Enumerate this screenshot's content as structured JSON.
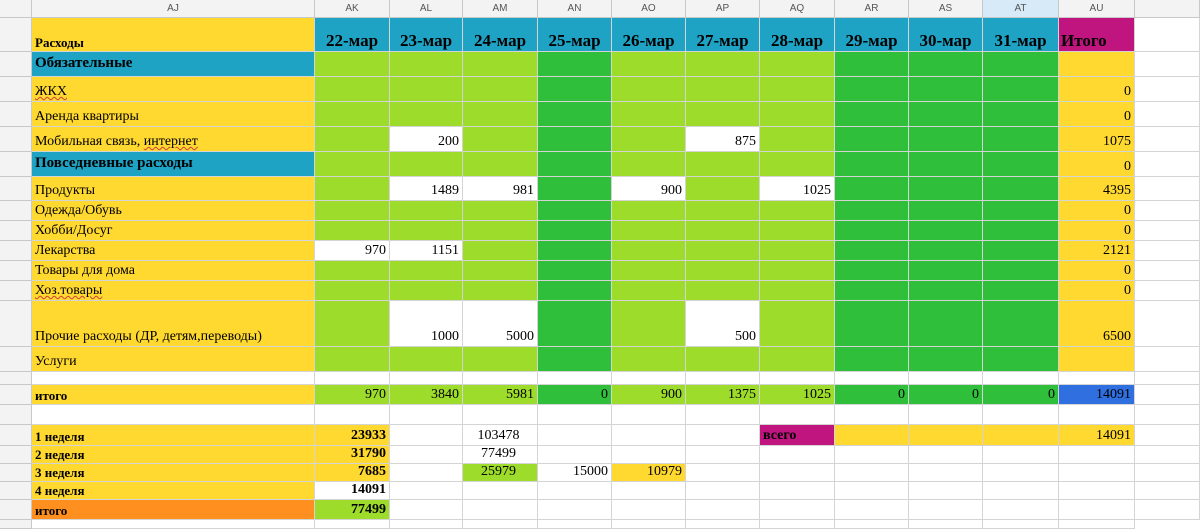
{
  "columns": [
    "AJ",
    "AK",
    "AL",
    "AM",
    "AN",
    "AO",
    "AP",
    "AQ",
    "AR",
    "AS",
    "AT",
    "AU"
  ],
  "header": {
    "title": "Расходы",
    "dates": [
      "22-мар",
      "23-мар",
      "24-мар",
      "25-мар",
      "26-мар",
      "27-мар",
      "28-мар",
      "29-мар",
      "30-мар",
      "31-мар"
    ],
    "total": "Итого"
  },
  "rows": [
    {
      "label": "Обязательные",
      "type": "section",
      "values": [
        "",
        "",
        "",
        "",
        "",
        "",
        "",
        "",
        "",
        ""
      ],
      "total": ""
    },
    {
      "label": "ЖКХ",
      "type": "item",
      "spell": true,
      "values": [
        "",
        "",
        "",
        "",
        "",
        "",
        "",
        "",
        "",
        ""
      ],
      "total": "0"
    },
    {
      "label": "Аренда квартиры",
      "type": "item",
      "values": [
        "",
        "",
        "",
        "",
        "",
        "",
        "",
        "",
        "",
        ""
      ],
      "total": "0"
    },
    {
      "label": "Мобильная связь, ",
      "label_spell": "интернет",
      "type": "item",
      "values": [
        "",
        "200",
        "",
        "",
        "",
        "875",
        "",
        "",
        "",
        ""
      ],
      "total": "1075"
    },
    {
      "label": "Повседневные расходы",
      "type": "section",
      "values": [
        "",
        "",
        "",
        "",
        "",
        "",
        "",
        "",
        "",
        ""
      ],
      "total": "0"
    },
    {
      "label": "Продукты",
      "type": "item",
      "values": [
        "",
        "1489",
        "981",
        "",
        "900",
        "",
        "1025",
        "",
        "",
        ""
      ],
      "total": "4395"
    },
    {
      "label": "Одежда/Обувь",
      "type": "item",
      "values": [
        "",
        "",
        "",
        "",
        "",
        "",
        "",
        "",
        "",
        ""
      ],
      "total": "0"
    },
    {
      "label": "Хобби/Досуг",
      "type": "item",
      "values": [
        "",
        "",
        "",
        "",
        "",
        "",
        "",
        "",
        "",
        ""
      ],
      "total": "0"
    },
    {
      "label": "Лекарства",
      "type": "item",
      "values": [
        "970",
        "1151",
        "",
        "",
        "",
        "",
        "",
        "",
        "",
        ""
      ],
      "total": "2121"
    },
    {
      "label": "Товары для дома",
      "type": "item",
      "values": [
        "",
        "",
        "",
        "",
        "",
        "",
        "",
        "",
        "",
        ""
      ],
      "total": "0"
    },
    {
      "label": "Хоз.товары",
      "type": "item",
      "spell": true,
      "values": [
        "",
        "",
        "",
        "",
        "",
        "",
        "",
        "",
        "",
        ""
      ],
      "total": "0"
    },
    {
      "label": "Прочие расходы (ДР, детям,переводы)",
      "type": "item",
      "values": [
        "",
        "1000",
        "5000",
        "",
        "",
        "500",
        "",
        "",
        "",
        ""
      ],
      "total": "6500"
    },
    {
      "label": "Услуги",
      "type": "item",
      "values": [
        "",
        "",
        "",
        "",
        "",
        "",
        "",
        "",
        "",
        ""
      ],
      "total": ""
    },
    {
      "label": "",
      "type": "blank",
      "values": [
        "",
        "",
        "",
        "",
        "",
        "",
        "",
        "",
        "",
        ""
      ],
      "total": ""
    },
    {
      "label": "итого",
      "type": "total",
      "values": [
        "970",
        "3840",
        "5981",
        "0",
        "900",
        "1375",
        "1025",
        "0",
        "0",
        "0"
      ],
      "total": "14091"
    }
  ],
  "weeks": [
    {
      "label": "1 неделя",
      "value": "23933",
      "c1": "103478",
      "c2": "",
      "c3": ""
    },
    {
      "label": "2 неделя",
      "value": "31790",
      "c1": "77499",
      "c2": "",
      "c3": ""
    },
    {
      "label": "3 неделя",
      "value": "7685",
      "c1": "25979",
      "c2": "15000",
      "c3": "10979"
    },
    {
      "label": "4 неделя",
      "value": "14091",
      "c1": "",
      "c2": "",
      "c3": ""
    },
    {
      "label": "итого",
      "value": "77499",
      "c1": "",
      "c2": "",
      "c3": ""
    }
  ],
  "vsego": {
    "label": "всего",
    "value": "14091"
  },
  "colors": {
    "yellow": "#ffd92f",
    "light_green": "#9ddc2a",
    "dark_green": "#2fbf3a",
    "teal": "#1fa3c4",
    "magenta": "#c0157f",
    "blue": "#2f6fe0",
    "orange": "#ff8f1f"
  }
}
